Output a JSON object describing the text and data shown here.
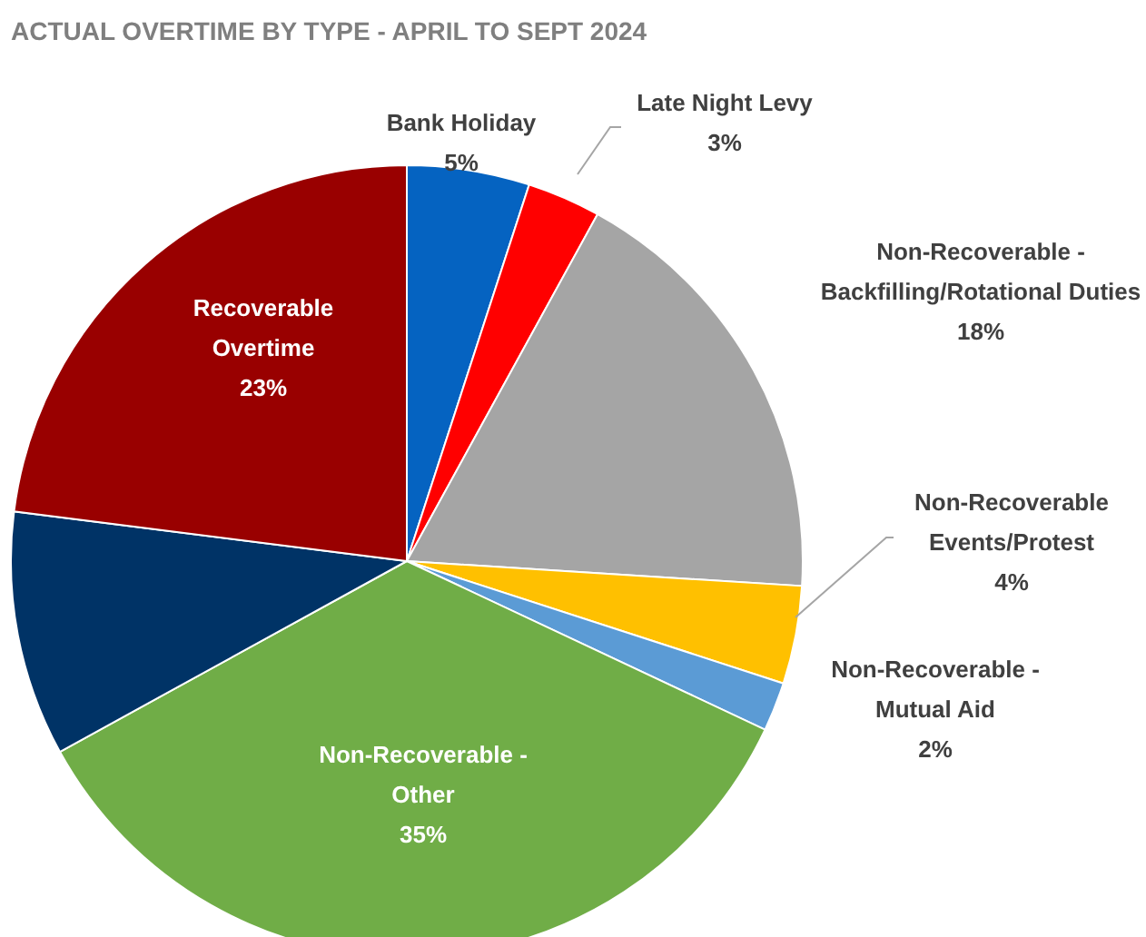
{
  "chart_data": {
    "type": "pie",
    "title": "ACTUAL OVERTIME BY TYPE - APRIL TO SEPT 2024",
    "categories": [
      "Bank Holiday",
      "Late Night Levy",
      "Non-Recoverable -\nBackfilling/Rotational Duties",
      "Non-Recoverable\nEvents/Protest",
      "Non-Recoverable -\nMutual Aid",
      "Non-Recoverable -\nOther",
      null,
      "Recoverable\nOvertime"
    ],
    "values": [
      5,
      3,
      18,
      4,
      2,
      35,
      10,
      23
    ],
    "value_labels": [
      "5%",
      "3%",
      "18%",
      "4%",
      "2%",
      "35%",
      null,
      "23%"
    ],
    "colors": [
      "#0563c1",
      "#ff0000",
      "#a5a5a5",
      "#ffc000",
      "#5b9bd5",
      "#70ad47",
      "#003366",
      "#990000"
    ]
  }
}
